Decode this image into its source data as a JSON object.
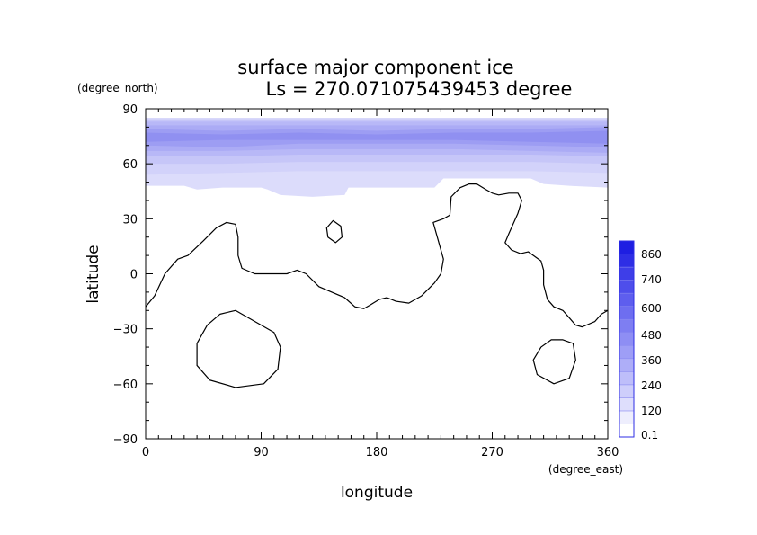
{
  "chart_data": {
    "type": "heatmap",
    "title": "surface major component ice",
    "subtitle": "Ls = 270.071075439453 degree",
    "xlabel": "longitude",
    "ylabel": "latitude",
    "x_unit": "(degree_east)",
    "y_unit": "(degree_north)",
    "xlim": [
      0,
      360
    ],
    "ylim": [
      -90,
      90
    ],
    "x_ticks": [
      "0",
      "90",
      "180",
      "270",
      "360"
    ],
    "y_ticks": [
      "90",
      "60",
      "30",
      "0",
      "−30",
      "−60",
      "−90"
    ],
    "x_tick_values": [
      0,
      90,
      180,
      270,
      360
    ],
    "y_tick_values": [
      90,
      60,
      30,
      0,
      -30,
      -60,
      -90
    ],
    "colorbar": {
      "labels": [
        "0.1",
        "120",
        "240",
        "360",
        "480",
        "600",
        "740",
        "860"
      ],
      "levels": [
        0.1,
        60,
        120,
        180,
        240,
        300,
        360,
        420,
        480,
        540,
        600,
        670,
        740,
        800,
        860,
        920
      ],
      "colors": [
        "#ffffff",
        "#eeeefd",
        "#dedefc",
        "#cecefb",
        "#bebefa",
        "#aeaef8",
        "#9e9ef6",
        "#8e8ef4",
        "#7e7ef2",
        "#6e6ef0",
        "#5e5eee",
        "#4e4eeb",
        "#3e3ee8",
        "#2e2ee5",
        "#1e1ee2"
      ]
    },
    "ice_cap": {
      "bands": [
        {
          "level": 60,
          "color": "#dcdcfb",
          "top": [
            [
              0,
              85
            ],
            [
              360,
              85
            ]
          ],
          "bottom": [
            [
              0,
              48
            ],
            [
              30,
              48
            ],
            [
              40,
              46
            ],
            [
              60,
              47
            ],
            [
              90,
              47
            ],
            [
              95,
              46
            ],
            [
              105,
              43
            ],
            [
              130,
              42
            ],
            [
              155,
              43
            ],
            [
              158,
              47
            ],
            [
              170,
              47
            ],
            [
              225,
              47
            ],
            [
              232,
              52
            ],
            [
              300,
              52
            ],
            [
              310,
              49
            ],
            [
              330,
              48
            ],
            [
              360,
              47
            ]
          ]
        },
        {
          "level": 120,
          "color": "#d2d2fa",
          "top": [
            [
              0,
              85
            ],
            [
              360,
              85
            ]
          ],
          "bottom": [
            [
              0,
              54
            ],
            [
              60,
              55
            ],
            [
              120,
              56
            ],
            [
              180,
              56
            ],
            [
              240,
              56
            ],
            [
              300,
              56
            ],
            [
              360,
              55
            ]
          ]
        },
        {
          "level": 180,
          "color": "#c6c6f8",
          "top": [
            [
              0,
              84
            ],
            [
              360,
              84
            ]
          ],
          "bottom": [
            [
              0,
              60
            ],
            [
              60,
              60
            ],
            [
              120,
              61
            ],
            [
              180,
              61
            ],
            [
              240,
              61
            ],
            [
              300,
              61
            ],
            [
              360,
              60
            ]
          ]
        },
        {
          "level": 240,
          "color": "#b8b8f7",
          "top": [
            [
              0,
              83
            ],
            [
              120,
              83
            ],
            [
              240,
              83
            ],
            [
              360,
              83
            ]
          ],
          "bottom": [
            [
              0,
              64
            ],
            [
              60,
              64
            ],
            [
              120,
              65
            ],
            [
              180,
              65
            ],
            [
              240,
              65
            ],
            [
              300,
              65
            ],
            [
              360,
              64
            ]
          ]
        },
        {
          "level": 300,
          "color": "#ababf5",
          "top": [
            [
              0,
              81
            ],
            [
              120,
              81
            ],
            [
              240,
              81
            ],
            [
              360,
              81
            ]
          ],
          "bottom": [
            [
              0,
              67
            ],
            [
              60,
              67
            ],
            [
              120,
              68
            ],
            [
              180,
              68
            ],
            [
              240,
              68
            ],
            [
              300,
              67
            ],
            [
              360,
              66
            ]
          ]
        },
        {
          "level": 360,
          "color": "#9d9df3",
          "top": [
            [
              0,
              79
            ],
            [
              60,
              78
            ],
            [
              120,
              79
            ],
            [
              180,
              78
            ],
            [
              240,
              79
            ],
            [
              300,
              79
            ],
            [
              360,
              80
            ]
          ],
          "bottom": [
            [
              0,
              70
            ],
            [
              60,
              69
            ],
            [
              120,
              71
            ],
            [
              180,
              71
            ],
            [
              240,
              71
            ],
            [
              300,
              70
            ],
            [
              360,
              69
            ]
          ]
        },
        {
          "level": 420,
          "color": "#9090f1",
          "top": [
            [
              0,
              77
            ],
            [
              60,
              76
            ],
            [
              120,
              77
            ],
            [
              180,
              76
            ],
            [
              240,
              77
            ],
            [
              300,
              77
            ],
            [
              360,
              78
            ]
          ],
          "bottom": [
            [
              0,
              72
            ],
            [
              60,
              73
            ],
            [
              120,
              73
            ],
            [
              180,
              73
            ],
            [
              240,
              73
            ],
            [
              300,
              72
            ],
            [
              360,
              71
            ]
          ]
        }
      ]
    },
    "topography_contours": [
      {
        "closed": false,
        "points": [
          [
            0,
            -18
          ],
          [
            7,
            -12
          ],
          [
            15,
            0
          ],
          [
            25,
            8
          ],
          [
            33,
            10
          ],
          [
            45,
            18
          ],
          [
            55,
            25
          ],
          [
            63,
            28
          ],
          [
            70,
            27
          ],
          [
            72,
            20
          ],
          [
            72,
            10
          ],
          [
            75,
            3
          ],
          [
            85,
            0
          ],
          [
            100,
            0
          ],
          [
            110,
            0
          ],
          [
            118,
            2
          ],
          [
            125,
            0
          ],
          [
            135,
            -7
          ],
          [
            145,
            -10
          ],
          [
            155,
            -13
          ],
          [
            163,
            -18
          ],
          [
            170,
            -19
          ],
          [
            175,
            -17
          ],
          [
            182,
            -14
          ],
          [
            188,
            -13
          ],
          [
            195,
            -15
          ],
          [
            205,
            -16
          ],
          [
            215,
            -12
          ],
          [
            225,
            -5
          ],
          [
            230,
            0
          ],
          [
            232,
            8
          ],
          [
            228,
            18
          ],
          [
            224,
            28
          ],
          [
            232,
            30
          ],
          [
            237,
            32
          ],
          [
            238,
            42
          ],
          [
            245,
            47
          ],
          [
            252,
            49
          ],
          [
            258,
            49
          ],
          [
            265,
            46
          ],
          [
            270,
            44
          ],
          [
            275,
            43
          ],
          [
            283,
            44
          ],
          [
            290,
            44
          ],
          [
            293,
            40
          ],
          [
            290,
            33
          ],
          [
            283,
            22
          ],
          [
            280,
            17
          ],
          [
            285,
            13
          ],
          [
            292,
            11
          ],
          [
            298,
            12
          ],
          [
            308,
            7
          ],
          [
            310,
            2
          ],
          [
            310,
            -6
          ],
          [
            313,
            -14
          ],
          [
            318,
            -18
          ],
          [
            325,
            -20
          ],
          [
            330,
            -24
          ],
          [
            335,
            -28
          ],
          [
            340,
            -29
          ],
          [
            350,
            -26
          ],
          [
            355,
            -22
          ],
          [
            360,
            -20
          ]
        ]
      },
      {
        "closed": true,
        "points": [
          [
            146,
            29
          ],
          [
            152,
            26
          ],
          [
            153,
            20
          ],
          [
            148,
            17
          ],
          [
            142,
            20
          ],
          [
            141,
            25
          ]
        ]
      },
      {
        "closed": true,
        "points": [
          [
            70,
            -20
          ],
          [
            85,
            -26
          ],
          [
            100,
            -32
          ],
          [
            105,
            -40
          ],
          [
            103,
            -52
          ],
          [
            92,
            -60
          ],
          [
            70,
            -62
          ],
          [
            50,
            -58
          ],
          [
            40,
            -50
          ],
          [
            40,
            -38
          ],
          [
            48,
            -28
          ],
          [
            58,
            -22
          ]
        ]
      },
      {
        "closed": true,
        "points": [
          [
            325,
            -36
          ],
          [
            333,
            -38
          ],
          [
            335,
            -47
          ],
          [
            330,
            -57
          ],
          [
            318,
            -60
          ],
          [
            305,
            -55
          ],
          [
            302,
            -47
          ],
          [
            308,
            -40
          ],
          [
            316,
            -36
          ]
        ]
      }
    ]
  }
}
